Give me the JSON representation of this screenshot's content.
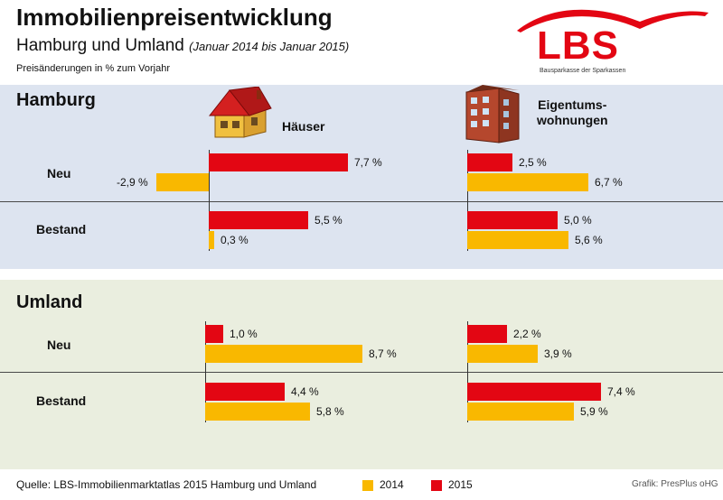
{
  "header": {
    "title": "Immobilienpreisentwicklung",
    "subtitle": "Hamburg und Umland",
    "subtitle_note": "(Januar 2014 bis Januar 2015)",
    "unit_note": "Preisänderungen in % zum Vorjahr"
  },
  "logo": {
    "text": "LBS",
    "tagline": "Bausparkasse der Sparkassen"
  },
  "columns": {
    "houses": "Häuser",
    "apartments_line1": "Eigentums-",
    "apartments_line2": "wohnungen"
  },
  "regions": {
    "hamburg": "Hamburg",
    "umland": "Umland"
  },
  "rows": {
    "new": "Neu",
    "existing": "Bestand"
  },
  "legend": [
    {
      "label": "2014",
      "color": "#f9b800"
    },
    {
      "label": "2015",
      "color": "#e30613"
    }
  ],
  "footer": {
    "source": "Quelle: LBS-Immobilienmarktatlas 2015 Hamburg und Umland",
    "credit": "Grafik: PresPlus oHG"
  },
  "colors": {
    "y2015": "#e30613",
    "y2014": "#f9b800"
  },
  "chart_data": {
    "type": "bar",
    "orientation": "horizontal",
    "unit": "%",
    "panels": [
      {
        "region": "Hamburg",
        "segment": "Häuser",
        "rows": [
          {
            "category": "Neu",
            "series": [
              {
                "name": "2015",
                "value": 7.7,
                "label": "7,7 %"
              },
              {
                "name": "2014",
                "value": -2.9,
                "label": "-2,9 %"
              }
            ]
          },
          {
            "category": "Bestand",
            "series": [
              {
                "name": "2015",
                "value": 5.5,
                "label": "5,5 %"
              },
              {
                "name": "2014",
                "value": 0.3,
                "label": "0,3 %"
              }
            ]
          }
        ]
      },
      {
        "region": "Hamburg",
        "segment": "Eigentumswohnungen",
        "rows": [
          {
            "category": "Neu",
            "series": [
              {
                "name": "2015",
                "value": 2.5,
                "label": "2,5 %"
              },
              {
                "name": "2014",
                "value": 6.7,
                "label": "6,7 %"
              }
            ]
          },
          {
            "category": "Bestand",
            "series": [
              {
                "name": "2015",
                "value": 5.0,
                "label": "5,0 %"
              },
              {
                "name": "2014",
                "value": 5.6,
                "label": "5,6 %"
              }
            ]
          }
        ]
      },
      {
        "region": "Umland",
        "segment": "Häuser",
        "rows": [
          {
            "category": "Neu",
            "series": [
              {
                "name": "2015",
                "value": 1.0,
                "label": "1,0 %"
              },
              {
                "name": "2014",
                "value": 8.7,
                "label": "8,7 %"
              }
            ]
          },
          {
            "category": "Bestand",
            "series": [
              {
                "name": "2015",
                "value": 4.4,
                "label": "4,4 %"
              },
              {
                "name": "2014",
                "value": 5.8,
                "label": "5,8 %"
              }
            ]
          }
        ]
      },
      {
        "region": "Umland",
        "segment": "Eigentumswohnungen",
        "rows": [
          {
            "category": "Neu",
            "series": [
              {
                "name": "2015",
                "value": 2.2,
                "label": "2,2 %"
              },
              {
                "name": "2014",
                "value": 3.9,
                "label": "3,9 %"
              }
            ]
          },
          {
            "category": "Bestand",
            "series": [
              {
                "name": "2015",
                "value": 7.4,
                "label": "7,4 %"
              },
              {
                "name": "2014",
                "value": 5.9,
                "label": "5,9 %"
              }
            ]
          }
        ]
      }
    ]
  }
}
